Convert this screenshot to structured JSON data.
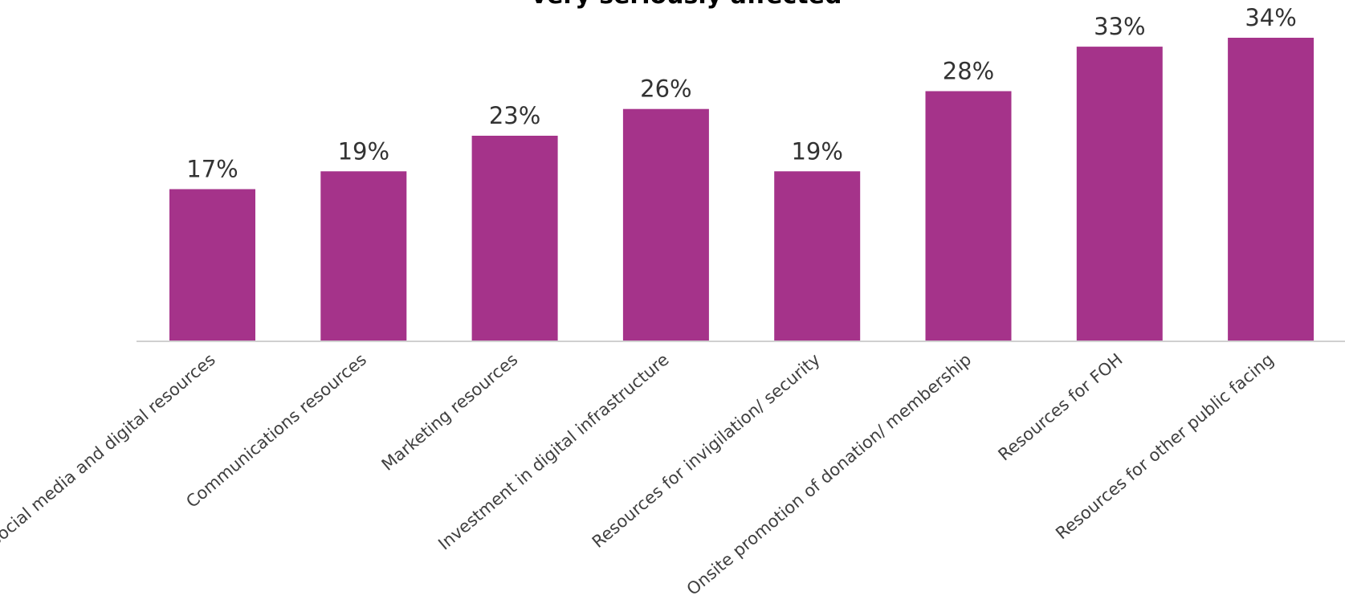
{
  "chart_data": {
    "type": "bar",
    "title": "very seriously affected",
    "categories": [
      "Social media and digital resources",
      "Communications resources",
      "Marketing resources",
      "Investment in digital infrastructure",
      "Resources for invigilation/ security",
      "Onsite promotion of donation/ membership",
      "Resources for FOH",
      "Resources for other public facing"
    ],
    "values": [
      17,
      19,
      23,
      26,
      19,
      28,
      33,
      34
    ],
    "value_labels": [
      "17%",
      "19%",
      "23%",
      "26%",
      "19%",
      "28%",
      "33%",
      "34%"
    ],
    "ylim": [
      0,
      34
    ],
    "grid": false,
    "legend": "none",
    "bar_color": "#a5338a"
  }
}
